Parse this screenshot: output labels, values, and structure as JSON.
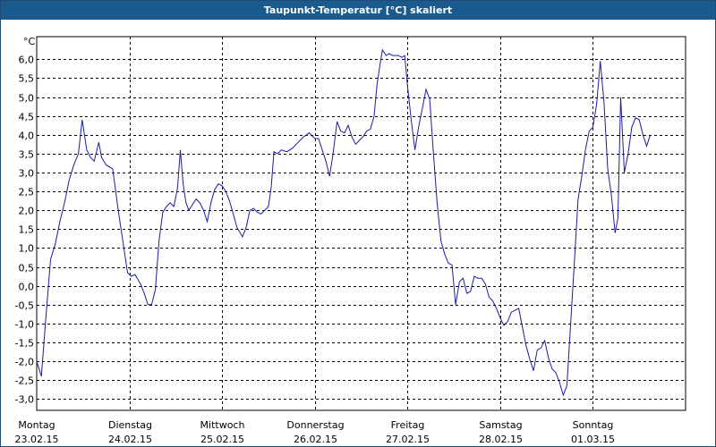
{
  "window": {
    "title": "Taupunkt-Temperatur [°C] skaliert"
  },
  "colors": {
    "title_bar": "#1a5a8c",
    "line": "#1c1c9e",
    "grid": "#000000",
    "background": "#ffffff"
  },
  "chart_data": {
    "type": "line",
    "title": "Taupunkt-Temperatur [°C] skaliert",
    "ylabel": "°C",
    "xlabel": "",
    "ylim": [
      -3.3,
      6.6
    ],
    "xlim": [
      0,
      7
    ],
    "grid": true,
    "y_ticks": [
      "6,0",
      "5,5",
      "5,0",
      "4,5",
      "4,0",
      "3,5",
      "3,0",
      "2,5",
      "2,0",
      "1,5",
      "1,0",
      "0,5",
      "0,0",
      "-0,5",
      "-1,0",
      "-1,5",
      "-2,0",
      "-2,5",
      "-3,0"
    ],
    "y_tick_values": [
      6.0,
      5.5,
      5.0,
      4.5,
      4.0,
      3.5,
      3.0,
      2.5,
      2.0,
      1.5,
      1.0,
      0.5,
      0.0,
      -0.5,
      -1.0,
      -1.5,
      -2.0,
      -2.5,
      -3.0
    ],
    "x_ticks": [
      {
        "day": "Montag",
        "date": "23.02.15",
        "x": 0
      },
      {
        "day": "Dienstag",
        "date": "24.02.15",
        "x": 1
      },
      {
        "day": "Mittwoch",
        "date": "25.02.15",
        "x": 2
      },
      {
        "day": "Donnerstag",
        "date": "26.02.15",
        "x": 3
      },
      {
        "day": "Freitag",
        "date": "27.02.15",
        "x": 4
      },
      {
        "day": "Samstag",
        "date": "28.02.15",
        "x": 5
      },
      {
        "day": "Sonntag",
        "date": "01.03.15",
        "x": 6
      }
    ],
    "series": [
      {
        "values": [
          [
            0.0,
            -2.0
          ],
          [
            0.05,
            -2.4
          ],
          [
            0.1,
            -0.8
          ],
          [
            0.15,
            0.7
          ],
          [
            0.2,
            1.1
          ],
          [
            0.25,
            1.7
          ],
          [
            0.3,
            2.2
          ],
          [
            0.35,
            2.8
          ],
          [
            0.4,
            3.2
          ],
          [
            0.45,
            3.5
          ],
          [
            0.49,
            4.4
          ],
          [
            0.54,
            3.6
          ],
          [
            0.58,
            3.4
          ],
          [
            0.62,
            3.3
          ],
          [
            0.67,
            3.8
          ],
          [
            0.7,
            3.4
          ],
          [
            0.75,
            3.2
          ],
          [
            0.82,
            3.1
          ],
          [
            0.88,
            2.0
          ],
          [
            0.94,
            1.0
          ],
          [
            0.98,
            0.35
          ],
          [
            1.02,
            0.25
          ],
          [
            1.06,
            0.3
          ],
          [
            1.12,
            0.05
          ],
          [
            1.16,
            -0.2
          ],
          [
            1.2,
            -0.5
          ],
          [
            1.24,
            -0.5
          ],
          [
            1.28,
            -0.1
          ],
          [
            1.32,
            1.2
          ],
          [
            1.36,
            1.95
          ],
          [
            1.4,
            2.1
          ],
          [
            1.44,
            2.2
          ],
          [
            1.48,
            2.1
          ],
          [
            1.52,
            2.6
          ],
          [
            1.55,
            3.6
          ],
          [
            1.58,
            2.7
          ],
          [
            1.61,
            2.2
          ],
          [
            1.64,
            2.0
          ],
          [
            1.68,
            2.15
          ],
          [
            1.72,
            2.3
          ],
          [
            1.76,
            2.2
          ],
          [
            1.8,
            2.0
          ],
          [
            1.84,
            1.7
          ],
          [
            1.88,
            2.2
          ],
          [
            1.92,
            2.55
          ],
          [
            1.96,
            2.7
          ],
          [
            2.0,
            2.65
          ],
          [
            2.04,
            2.5
          ],
          [
            2.08,
            2.25
          ],
          [
            2.12,
            1.9
          ],
          [
            2.16,
            1.55
          ],
          [
            2.22,
            1.3
          ],
          [
            2.26,
            1.55
          ],
          [
            2.3,
            2.0
          ],
          [
            2.34,
            2.05
          ],
          [
            2.38,
            1.95
          ],
          [
            2.42,
            1.9
          ],
          [
            2.46,
            2.0
          ],
          [
            2.5,
            2.1
          ],
          [
            2.53,
            2.6
          ],
          [
            2.56,
            3.55
          ],
          [
            2.6,
            3.5
          ],
          [
            2.64,
            3.6
          ],
          [
            2.7,
            3.55
          ],
          [
            2.76,
            3.65
          ],
          [
            2.82,
            3.8
          ],
          [
            2.88,
            3.95
          ],
          [
            2.94,
            4.05
          ],
          [
            3.0,
            3.9
          ],
          [
            3.04,
            3.9
          ],
          [
            3.08,
            3.6
          ],
          [
            3.12,
            3.3
          ],
          [
            3.16,
            2.9
          ],
          [
            3.2,
            3.55
          ],
          [
            3.24,
            4.35
          ],
          [
            3.28,
            4.1
          ],
          [
            3.32,
            4.05
          ],
          [
            3.36,
            4.25
          ],
          [
            3.4,
            3.95
          ],
          [
            3.44,
            3.75
          ],
          [
            3.48,
            3.85
          ],
          [
            3.52,
            3.95
          ],
          [
            3.56,
            4.1
          ],
          [
            3.6,
            4.15
          ],
          [
            3.64,
            4.5
          ],
          [
            3.67,
            5.3
          ],
          [
            3.7,
            5.8
          ],
          [
            3.73,
            6.25
          ],
          [
            3.77,
            6.1
          ],
          [
            3.8,
            6.15
          ],
          [
            3.84,
            6.1
          ],
          [
            3.9,
            6.1
          ],
          [
            3.94,
            6.05
          ],
          [
            3.97,
            6.1
          ],
          [
            4.0,
            5.3
          ],
          [
            4.04,
            4.4
          ],
          [
            4.08,
            3.6
          ],
          [
            4.12,
            4.2
          ],
          [
            4.16,
            4.7
          ],
          [
            4.2,
            5.2
          ],
          [
            4.24,
            4.95
          ],
          [
            4.28,
            3.5
          ],
          [
            4.32,
            2.2
          ],
          [
            4.36,
            1.2
          ],
          [
            4.4,
            0.85
          ],
          [
            4.44,
            0.6
          ],
          [
            4.48,
            0.55
          ],
          [
            4.52,
            -0.5
          ],
          [
            4.56,
            0.1
          ],
          [
            4.6,
            0.2
          ],
          [
            4.64,
            -0.2
          ],
          [
            4.68,
            -0.15
          ],
          [
            4.72,
            0.25
          ],
          [
            4.76,
            0.2
          ],
          [
            4.8,
            0.2
          ],
          [
            4.84,
            0.05
          ],
          [
            4.88,
            -0.3
          ],
          [
            4.92,
            -0.4
          ],
          [
            4.96,
            -0.6
          ],
          [
            5.0,
            -0.85
          ],
          [
            5.04,
            -1.05
          ],
          [
            5.08,
            -0.95
          ],
          [
            5.12,
            -0.7
          ],
          [
            5.16,
            -0.65
          ],
          [
            5.2,
            -0.6
          ],
          [
            5.24,
            -1.1
          ],
          [
            5.28,
            -1.6
          ],
          [
            5.32,
            -1.95
          ],
          [
            5.36,
            -2.25
          ],
          [
            5.4,
            -1.7
          ],
          [
            5.44,
            -1.65
          ],
          [
            5.48,
            -1.45
          ],
          [
            5.52,
            -1.9
          ],
          [
            5.56,
            -2.2
          ],
          [
            5.6,
            -2.3
          ],
          [
            5.64,
            -2.55
          ],
          [
            5.68,
            -2.9
          ],
          [
            5.72,
            -2.65
          ],
          [
            5.76,
            -1.0
          ],
          [
            5.8,
            0.6
          ],
          [
            5.84,
            2.3
          ],
          [
            5.88,
            2.9
          ],
          [
            5.92,
            3.6
          ],
          [
            5.96,
            4.1
          ],
          [
            6.0,
            4.2
          ],
          [
            6.04,
            4.8
          ],
          [
            6.08,
            5.95
          ],
          [
            6.12,
            4.85
          ],
          [
            6.16,
            3.1
          ],
          [
            6.2,
            2.4
          ],
          [
            6.24,
            1.4
          ],
          [
            6.27,
            1.8
          ],
          [
            6.3,
            5.0
          ],
          [
            6.34,
            3.0
          ],
          [
            6.38,
            3.5
          ],
          [
            6.42,
            4.2
          ],
          [
            6.46,
            4.45
          ],
          [
            6.5,
            4.4
          ],
          [
            6.54,
            4.0
          ],
          [
            6.58,
            3.7
          ],
          [
            6.62,
            4.0
          ]
        ]
      }
    ]
  }
}
